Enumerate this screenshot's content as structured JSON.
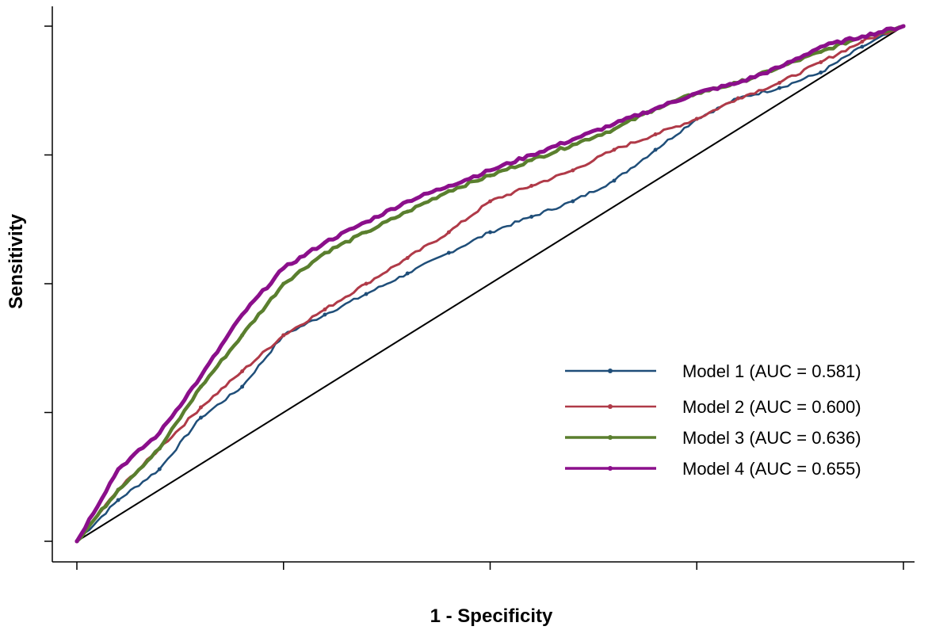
{
  "chart_data": {
    "type": "line",
    "title": "",
    "xlabel": "1 - Specificity",
    "ylabel": "Sensitivity",
    "xlim": [
      0,
      1
    ],
    "ylim": [
      0,
      1
    ],
    "x_ticks": [
      0,
      0.25,
      0.5,
      0.75,
      1
    ],
    "y_ticks": [
      0,
      0.25,
      0.5,
      0.75,
      1
    ],
    "tick_labels_shown": false,
    "grid": false,
    "legend_position": "bottom-right",
    "reference_line": {
      "color": "#000000",
      "points": [
        [
          0,
          0
        ],
        [
          1,
          1
        ]
      ]
    },
    "series": [
      {
        "name": "Model 1 (AUC = 0.581)",
        "color": "#1f4e79",
        "points": [
          [
            0,
            0
          ],
          [
            0.05,
            0.08
          ],
          [
            0.1,
            0.14
          ],
          [
            0.15,
            0.24
          ],
          [
            0.2,
            0.3
          ],
          [
            0.25,
            0.4
          ],
          [
            0.3,
            0.44
          ],
          [
            0.35,
            0.48
          ],
          [
            0.4,
            0.52
          ],
          [
            0.45,
            0.56
          ],
          [
            0.5,
            0.6
          ],
          [
            0.55,
            0.63
          ],
          [
            0.6,
            0.66
          ],
          [
            0.65,
            0.7
          ],
          [
            0.7,
            0.76
          ],
          [
            0.75,
            0.82
          ],
          [
            0.8,
            0.86
          ],
          [
            0.85,
            0.88
          ],
          [
            0.9,
            0.91
          ],
          [
            0.95,
            0.96
          ],
          [
            1,
            1
          ]
        ]
      },
      {
        "name": "Model 2 (AUC = 0.600)",
        "color": "#b03a48",
        "points": [
          [
            0,
            0
          ],
          [
            0.05,
            0.1
          ],
          [
            0.1,
            0.18
          ],
          [
            0.15,
            0.26
          ],
          [
            0.2,
            0.33
          ],
          [
            0.25,
            0.4
          ],
          [
            0.3,
            0.45
          ],
          [
            0.35,
            0.5
          ],
          [
            0.4,
            0.55
          ],
          [
            0.45,
            0.6
          ],
          [
            0.5,
            0.66
          ],
          [
            0.55,
            0.69
          ],
          [
            0.6,
            0.72
          ],
          [
            0.65,
            0.76
          ],
          [
            0.7,
            0.79
          ],
          [
            0.75,
            0.82
          ],
          [
            0.8,
            0.86
          ],
          [
            0.85,
            0.89
          ],
          [
            0.9,
            0.93
          ],
          [
            0.95,
            0.97
          ],
          [
            1,
            1
          ]
        ]
      },
      {
        "name": "Model 3 (AUC = 0.636)",
        "color": "#5a7f2e",
        "points": [
          [
            0,
            0
          ],
          [
            0.05,
            0.1
          ],
          [
            0.1,
            0.18
          ],
          [
            0.15,
            0.3
          ],
          [
            0.2,
            0.4
          ],
          [
            0.25,
            0.5
          ],
          [
            0.3,
            0.56
          ],
          [
            0.35,
            0.6
          ],
          [
            0.4,
            0.64
          ],
          [
            0.45,
            0.68
          ],
          [
            0.5,
            0.71
          ],
          [
            0.55,
            0.74
          ],
          [
            0.6,
            0.77
          ],
          [
            0.65,
            0.8
          ],
          [
            0.7,
            0.84
          ],
          [
            0.75,
            0.87
          ],
          [
            0.8,
            0.89
          ],
          [
            0.85,
            0.92
          ],
          [
            0.9,
            0.95
          ],
          [
            0.95,
            0.98
          ],
          [
            1,
            1
          ]
        ]
      },
      {
        "name": "Model 4 (AUC = 0.655)",
        "color": "#8b0f8b",
        "points": [
          [
            0,
            0
          ],
          [
            0.05,
            0.14
          ],
          [
            0.1,
            0.21
          ],
          [
            0.15,
            0.32
          ],
          [
            0.2,
            0.44
          ],
          [
            0.25,
            0.53
          ],
          [
            0.3,
            0.58
          ],
          [
            0.35,
            0.62
          ],
          [
            0.4,
            0.66
          ],
          [
            0.45,
            0.69
          ],
          [
            0.5,
            0.72
          ],
          [
            0.55,
            0.75
          ],
          [
            0.6,
            0.78
          ],
          [
            0.65,
            0.81
          ],
          [
            0.7,
            0.84
          ],
          [
            0.75,
            0.87
          ],
          [
            0.8,
            0.89
          ],
          [
            0.85,
            0.92
          ],
          [
            0.9,
            0.96
          ],
          [
            0.95,
            0.98
          ],
          [
            1,
            1
          ]
        ]
      }
    ]
  }
}
